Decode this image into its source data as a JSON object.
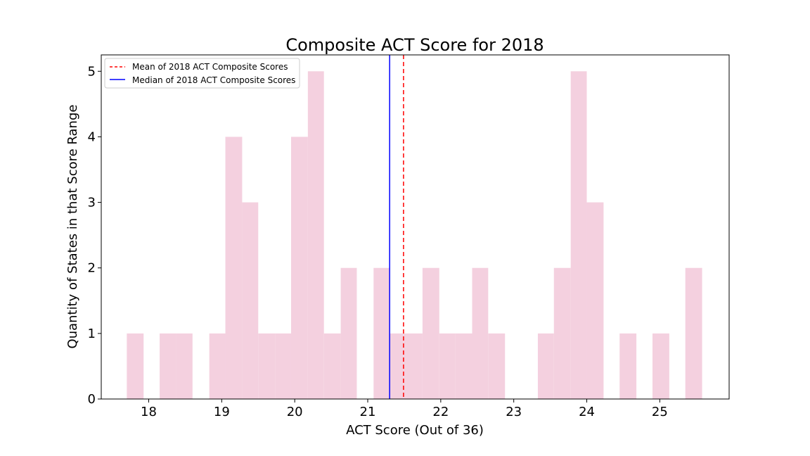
{
  "chart_data": {
    "type": "histogram",
    "title": "Composite ACT Score for 2018",
    "xlabel": "ACT Score (Out of 36)",
    "ylabel": "Quantity of States in that Score Range",
    "xlim": [
      17.35,
      25.95
    ],
    "ylim": [
      0,
      5.25
    ],
    "x_ticks": [
      18,
      19,
      20,
      21,
      22,
      23,
      24,
      25
    ],
    "y_ticks": [
      0,
      1,
      2,
      3,
      4,
      5
    ],
    "bar_color": "#f4d0df",
    "bins": [
      {
        "start": 17.7,
        "end": 17.93,
        "count": 1
      },
      {
        "start": 17.93,
        "end": 18.15,
        "count": 0
      },
      {
        "start": 18.15,
        "end": 18.38,
        "count": 1
      },
      {
        "start": 18.38,
        "end": 18.6,
        "count": 1
      },
      {
        "start": 18.6,
        "end": 18.83,
        "count": 0
      },
      {
        "start": 18.83,
        "end": 19.05,
        "count": 1
      },
      {
        "start": 19.05,
        "end": 19.28,
        "count": 4
      },
      {
        "start": 19.28,
        "end": 19.5,
        "count": 3
      },
      {
        "start": 19.5,
        "end": 19.73,
        "count": 1
      },
      {
        "start": 19.73,
        "end": 19.95,
        "count": 1
      },
      {
        "start": 19.95,
        "end": 20.18,
        "count": 4
      },
      {
        "start": 20.18,
        "end": 20.4,
        "count": 5
      },
      {
        "start": 20.4,
        "end": 20.63,
        "count": 1
      },
      {
        "start": 20.63,
        "end": 20.85,
        "count": 2
      },
      {
        "start": 20.85,
        "end": 21.08,
        "count": 0
      },
      {
        "start": 21.08,
        "end": 21.3,
        "count": 2
      },
      {
        "start": 21.3,
        "end": 21.53,
        "count": 1
      },
      {
        "start": 21.53,
        "end": 21.75,
        "count": 1
      },
      {
        "start": 21.75,
        "end": 21.98,
        "count": 2
      },
      {
        "start": 21.98,
        "end": 22.2,
        "count": 1
      },
      {
        "start": 22.2,
        "end": 22.43,
        "count": 1
      },
      {
        "start": 22.43,
        "end": 22.65,
        "count": 2
      },
      {
        "start": 22.65,
        "end": 22.88,
        "count": 1
      },
      {
        "start": 22.88,
        "end": 23.1,
        "count": 0
      },
      {
        "start": 23.1,
        "end": 23.33,
        "count": 0
      },
      {
        "start": 23.33,
        "end": 23.55,
        "count": 1
      },
      {
        "start": 23.55,
        "end": 23.78,
        "count": 2
      },
      {
        "start": 23.78,
        "end": 24.0,
        "count": 5
      },
      {
        "start": 24.0,
        "end": 24.23,
        "count": 3
      },
      {
        "start": 24.23,
        "end": 24.45,
        "count": 0
      },
      {
        "start": 24.45,
        "end": 24.68,
        "count": 1
      },
      {
        "start": 24.68,
        "end": 24.9,
        "count": 0
      },
      {
        "start": 24.9,
        "end": 25.13,
        "count": 1
      },
      {
        "start": 25.13,
        "end": 25.35,
        "count": 0
      },
      {
        "start": 25.35,
        "end": 25.58,
        "count": 2
      }
    ],
    "reference_lines": [
      {
        "label": "Mean of 2018 ACT Composite Scores",
        "x": 21.49,
        "color": "#ff0000",
        "style": "dashed"
      },
      {
        "label": "Median of 2018 ACT Composite Scores",
        "x": 21.3,
        "color": "#0000ff",
        "style": "solid"
      }
    ],
    "legend_position": "upper-left",
    "grid": false
  }
}
